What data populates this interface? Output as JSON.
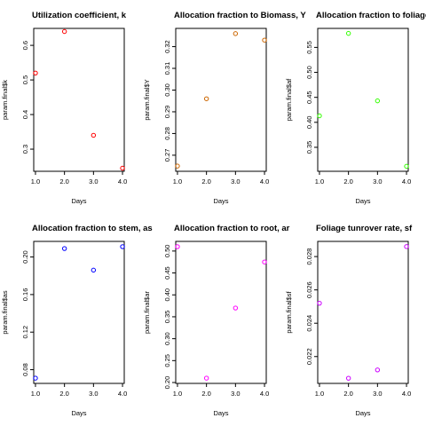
{
  "chart_data": [
    {
      "type": "scatter",
      "title": "Utilization coefficient, k",
      "xlabel": "Days",
      "ylabel": "param.final$k",
      "color": "#ff0000",
      "x": [
        1,
        2,
        3,
        4
      ],
      "y": [
        0.52,
        0.64,
        0.34,
        0.245
      ],
      "xlim": [
        0.94,
        4.06
      ],
      "ylim": [
        0.236,
        0.649
      ],
      "xticks": [
        "1.0",
        "2.0",
        "3.0",
        "4.0"
      ],
      "yticks": [
        "0.3",
        "0.4",
        "0.5",
        "0.6"
      ]
    },
    {
      "type": "scatter",
      "title": "Allocation fraction to Biomass, Y",
      "xlabel": "Days",
      "ylabel": "param.final$Y",
      "color": "#cc6600",
      "x": [
        1,
        2,
        3,
        4
      ],
      "y": [
        0.265,
        0.296,
        0.326,
        0.323
      ],
      "xlim": [
        0.94,
        4.06
      ],
      "ylim": [
        0.2626,
        0.3284
      ],
      "xticks": [
        "1.0",
        "2.0",
        "3.0",
        "4.0"
      ],
      "yticks": [
        "0.27",
        "0.28",
        "0.29",
        "0.30",
        "0.31",
        "0.32"
      ]
    },
    {
      "type": "scatter",
      "title": "Allocation fraction to foliage, af",
      "xlabel": "Days",
      "ylabel": "param.final$af",
      "color": "#33ff00",
      "x": [
        1,
        2,
        3,
        4
      ],
      "y": [
        0.413,
        0.578,
        0.443,
        0.312
      ],
      "xlim": [
        0.94,
        4.06
      ],
      "ylim": [
        0.302,
        0.588
      ],
      "xticks": [
        "1.0",
        "2.0",
        "3.0",
        "4.0"
      ],
      "yticks": [
        "0.35",
        "0.40",
        "0.45",
        "0.50",
        "0.55"
      ]
    },
    {
      "type": "scatter",
      "title": "Allocation fraction to stem, as",
      "xlabel": "Days",
      "ylabel": "param.final$as",
      "color": "#0000ff",
      "x": [
        1,
        2,
        3,
        4
      ],
      "y": [
        0.071,
        0.209,
        0.186,
        0.211
      ],
      "xlim": [
        0.94,
        4.06
      ],
      "ylim": [
        0.0654,
        0.2166
      ],
      "xticks": [
        "1.0",
        "2.0",
        "3.0",
        "4.0"
      ],
      "yticks": [
        "0.08",
        "0.12",
        "0.16",
        "0.20"
      ]
    },
    {
      "type": "scatter",
      "title": "Allocation fraction to root, ar",
      "xlabel": "Days",
      "ylabel": "param.final$ar",
      "color": "#ff00ff",
      "x": [
        1,
        2,
        3,
        4
      ],
      "y": [
        0.51,
        0.21,
        0.37,
        0.475
      ],
      "xlim": [
        0.94,
        4.06
      ],
      "ylim": [
        0.198,
        0.522
      ],
      "xticks": [
        "1.0",
        "2.0",
        "3.0",
        "4.0"
      ],
      "yticks": [
        "0.20",
        "0.25",
        "0.30",
        "0.35",
        "0.40",
        "0.45",
        "0.50"
      ]
    },
    {
      "type": "scatter",
      "title": "Foliage tunrover rate, sf",
      "xlabel": "Days",
      "ylabel": "param.final$sf",
      "color": "#cc00ff",
      "x": [
        1,
        2,
        3,
        4
      ],
      "y": [
        0.0252,
        0.0207,
        0.0212,
        0.0286
      ],
      "xlim": [
        0.94,
        4.06
      ],
      "ylim": [
        0.02039,
        0.02891
      ],
      "xticks": [
        "1.0",
        "2.0",
        "3.0",
        "4.0"
      ],
      "yticks": [
        "0.022",
        "0.024",
        "0.026",
        "0.028"
      ]
    }
  ]
}
